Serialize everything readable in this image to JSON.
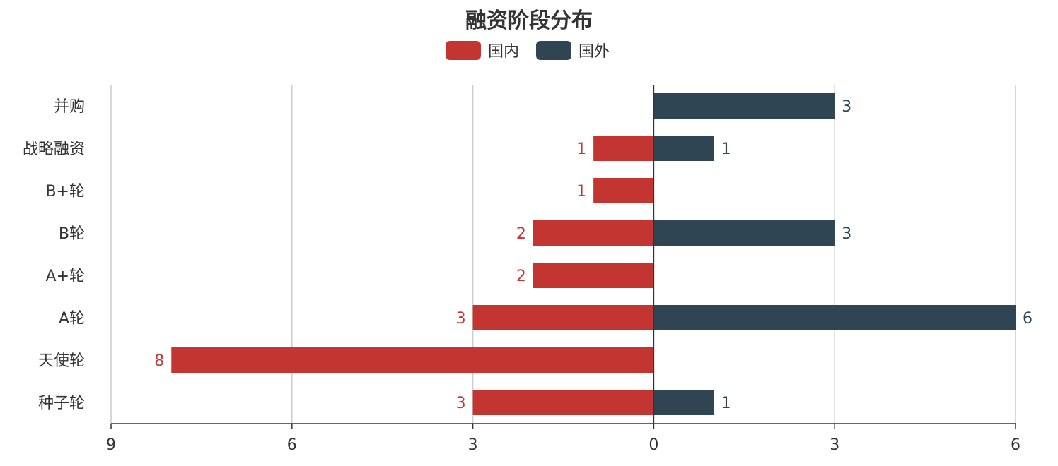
{
  "chart_data": {
    "type": "bar",
    "orientation": "horizontal-diverging",
    "title": "融资阶段分布",
    "categories": [
      "种子轮",
      "天使轮",
      "A轮",
      "A+轮",
      "B轮",
      "B+轮",
      "战略融资",
      "并购"
    ],
    "series": [
      {
        "name": "国内",
        "direction": "left",
        "values": [
          3,
          8,
          3,
          2,
          2,
          1,
          1,
          0
        ]
      },
      {
        "name": "国外",
        "direction": "right",
        "values": [
          1,
          0,
          6,
          0,
          3,
          0,
          1,
          3
        ]
      }
    ],
    "xlim": [
      -9,
      6
    ],
    "x_ticks": [
      -9,
      -6,
      -3,
      0,
      3,
      6
    ],
    "x_tick_labels": [
      "9",
      "6",
      "3",
      "0",
      "3",
      "6"
    ],
    "grid": true,
    "legend_position": "top-center",
    "data_labels": true
  },
  "colors": {
    "domestic": "#c23531",
    "foreign": "#2f4554"
  }
}
